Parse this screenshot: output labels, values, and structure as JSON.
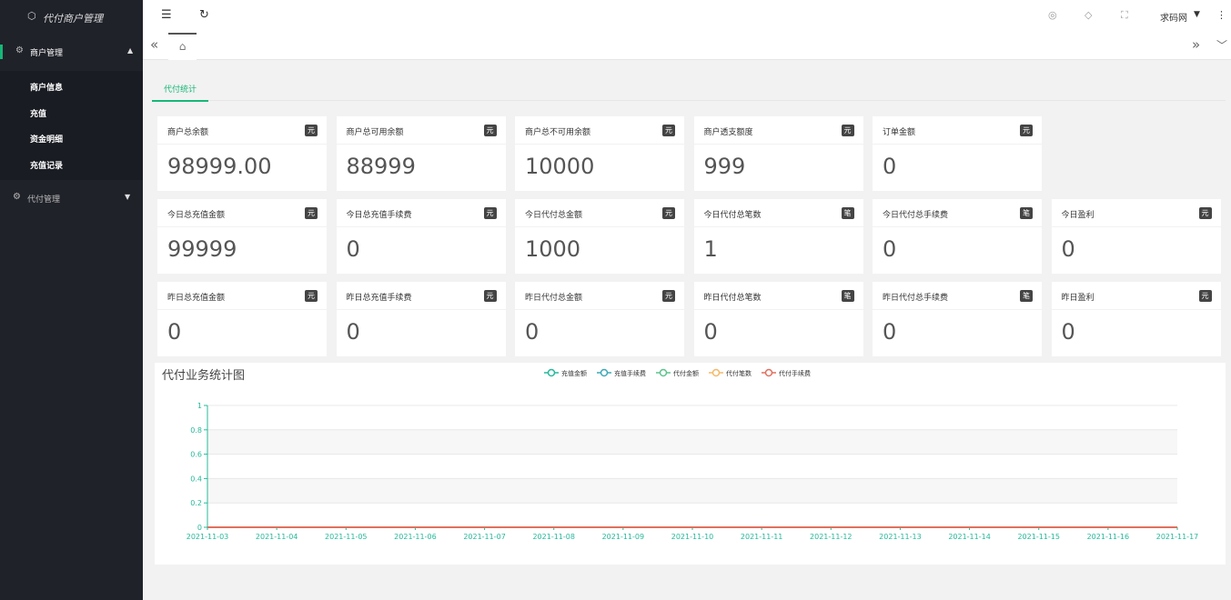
{
  "sidebar": {
    "logo": "代付商户管理",
    "menus": [
      {
        "label": "商户管理",
        "children": [
          "商户信息",
          "充值",
          "资金明细",
          "充值记录"
        ]
      },
      {
        "label": "代付管理"
      }
    ]
  },
  "topbar": {
    "user": "求码网"
  },
  "tabs": [
    "代付统计"
  ],
  "cards": [
    [
      {
        "label": "商户总余额",
        "unit": "元",
        "value": "98999.00"
      },
      {
        "label": "商户总可用余额",
        "unit": "元",
        "value": "88999"
      },
      {
        "label": "商户总不可用余额",
        "unit": "元",
        "value": "10000"
      },
      {
        "label": "商户透支额度",
        "unit": "元",
        "value": "999"
      },
      {
        "label": "订单金额",
        "unit": "元",
        "value": "0"
      }
    ],
    [
      {
        "label": "今日总充值金额",
        "unit": "元",
        "value": "99999"
      },
      {
        "label": "今日总充值手续费",
        "unit": "元",
        "value": "0"
      },
      {
        "label": "今日代付总金额",
        "unit": "元",
        "value": "1000"
      },
      {
        "label": "今日代付总笔数",
        "unit": "笔",
        "value": "1"
      },
      {
        "label": "今日代付总手续费",
        "unit": "笔",
        "value": "0"
      },
      {
        "label": "今日盈利",
        "unit": "元",
        "value": "0"
      }
    ],
    [
      {
        "label": "昨日总充值金额",
        "unit": "元",
        "value": "0"
      },
      {
        "label": "昨日总充值手续费",
        "unit": "元",
        "value": "0"
      },
      {
        "label": "昨日代付总金额",
        "unit": "元",
        "value": "0"
      },
      {
        "label": "昨日代付总笔数",
        "unit": "笔",
        "value": "0"
      },
      {
        "label": "昨日代付总手续费",
        "unit": "笔",
        "value": "0"
      },
      {
        "label": "昨日盈利",
        "unit": "元",
        "value": "0"
      }
    ]
  ],
  "chart_data": {
    "type": "line",
    "title": "代付业务统计图",
    "categories": [
      "2021-11-03",
      "2021-11-04",
      "2021-11-05",
      "2021-11-06",
      "2021-11-07",
      "2021-11-08",
      "2021-11-09",
      "2021-11-10",
      "2021-11-11",
      "2021-11-12",
      "2021-11-13",
      "2021-11-14",
      "2021-11-15",
      "2021-11-16",
      "2021-11-17"
    ],
    "series": [
      {
        "name": "充值金额",
        "color": "#26b99a",
        "values": [
          0,
          0,
          0,
          0,
          0,
          0,
          0,
          0,
          0,
          0,
          0,
          0,
          0,
          0,
          0
        ]
      },
      {
        "name": "充值手续费",
        "color": "#3ea9b8",
        "values": [
          0,
          0,
          0,
          0,
          0,
          0,
          0,
          0,
          0,
          0,
          0,
          0,
          0,
          0,
          0
        ]
      },
      {
        "name": "代付金额",
        "color": "#5cc48c",
        "values": [
          0,
          0,
          0,
          0,
          0,
          0,
          0,
          0,
          0,
          0,
          0,
          0,
          0,
          0,
          0
        ]
      },
      {
        "name": "代付笔数",
        "color": "#f5b868",
        "values": [
          0,
          0,
          0,
          0,
          0,
          0,
          0,
          0,
          0,
          0,
          0,
          0,
          0,
          0,
          0
        ]
      },
      {
        "name": "代付手续费",
        "color": "#e0705f",
        "values": [
          0,
          0,
          0,
          0,
          0,
          0,
          0,
          0,
          0,
          0,
          0,
          0,
          0,
          0,
          0
        ]
      }
    ],
    "ylim": [
      0,
      1
    ],
    "yticks": [
      0,
      0.2,
      0.4,
      0.6,
      0.8,
      1
    ],
    "grid": true
  }
}
